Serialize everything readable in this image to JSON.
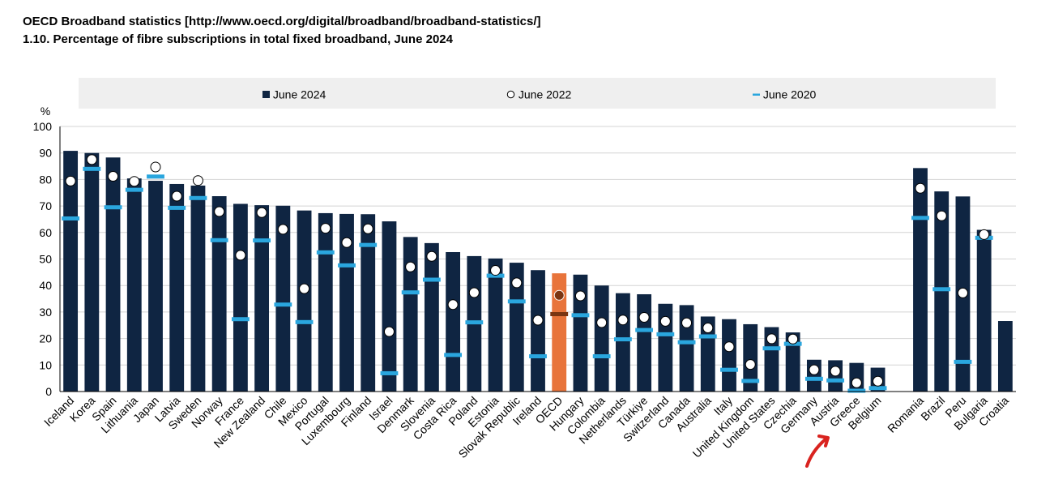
{
  "header": {
    "title": "OECD Broadband statistics [http://www.oecd.org/digital/broadband/broadband-statistics/]",
    "subtitle": "1.10. Percentage of fibre subscriptions in total fixed broadband, June 2024"
  },
  "legend": {
    "items": [
      {
        "label": "June 2024",
        "marker": "bar"
      },
      {
        "label": "June 2022",
        "marker": "circle"
      },
      {
        "label": "June 2020",
        "marker": "dash"
      }
    ]
  },
  "colors": {
    "bar": "#0f2542",
    "highlight_bar": "#e8743b",
    "dash_2020": "#2aa6de",
    "highlight_dash": "#7a3512",
    "circle_fill": "#ffffff",
    "circle_stroke": "#000000",
    "annotation_arrow": "#d9231f"
  },
  "chart_data": {
    "type": "bar",
    "ylabel": "%",
    "ylim": [
      0,
      100
    ],
    "yticks": [
      0,
      10,
      20,
      30,
      40,
      50,
      60,
      70,
      80,
      90,
      100
    ],
    "grid": true,
    "legend_position": "top",
    "highlight_category": "OECD",
    "categories": [
      "Iceland",
      "Korea",
      "Spain",
      "Lithuania",
      "Japan",
      "Latvia",
      "Sweden",
      "Norway",
      "France",
      "New Zealand",
      "Chile",
      "Mexico",
      "Portugal",
      "Luxembourg",
      "Finland",
      "Israel",
      "Denmark",
      "Slovenia",
      "Costa Rica",
      "Poland",
      "Estonia",
      "Slovak Republic",
      "Ireland",
      "OECD",
      "Hungary",
      "Colombia",
      "Netherlands",
      "Türkiye",
      "Switzerland",
      "Canada",
      "Australia",
      "Italy",
      "United Kingdom",
      "United States",
      "Czechia",
      "Germany",
      "Austria",
      "Greece",
      "Belgium",
      "",
      "Romania",
      "Brazil",
      "Peru",
      "Bulgaria",
      "Croatia"
    ],
    "series": [
      {
        "name": "June 2024",
        "type": "bar",
        "values": [
          90.8,
          90,
          88.3,
          80.4,
          79.5,
          78.3,
          77.7,
          73.7,
          70.8,
          70.3,
          70.1,
          68.3,
          67.3,
          67,
          66.9,
          64.2,
          58.3,
          56,
          52.6,
          51.1,
          50.2,
          48.6,
          45.8,
          44.6,
          44.1,
          40,
          37.1,
          36.7,
          33.1,
          32.6,
          28.3,
          27.3,
          25.4,
          24.3,
          22.3,
          12,
          11.8,
          10.8,
          9,
          null,
          84.3,
          75.5,
          73.6,
          61,
          26.6
        ]
      },
      {
        "name": "June 2022",
        "type": "circle",
        "values": [
          79.4,
          87.5,
          81.2,
          79.3,
          84.7,
          73.7,
          79.6,
          67.9,
          51.4,
          67.5,
          61.2,
          38.8,
          61.6,
          56.2,
          61.4,
          22.6,
          47,
          51,
          32.8,
          37.3,
          45.7,
          41,
          26.9,
          36.3,
          36.1,
          26,
          27,
          28,
          26.5,
          25.9,
          24,
          16.9,
          10.2,
          19.9,
          19.8,
          8.2,
          7.7,
          3.3,
          3.9,
          null,
          76.7,
          66.3,
          37.2,
          59.2,
          null
        ]
      },
      {
        "name": "June 2020",
        "type": "dash",
        "values": [
          65.3,
          84,
          69.5,
          76.1,
          81.1,
          69.3,
          73,
          57.1,
          27.3,
          57,
          32.8,
          26.2,
          52.5,
          47.6,
          55.3,
          6.9,
          37.4,
          42.2,
          13.8,
          26.1,
          43.7,
          34,
          13.3,
          29.2,
          28.8,
          13.3,
          19.7,
          23.2,
          21.6,
          18.6,
          20.8,
          8.2,
          4,
          16.3,
          18,
          4.8,
          4.2,
          0.3,
          1.3,
          null,
          65.5,
          38.6,
          11.2,
          58,
          null
        ]
      }
    ]
  }
}
